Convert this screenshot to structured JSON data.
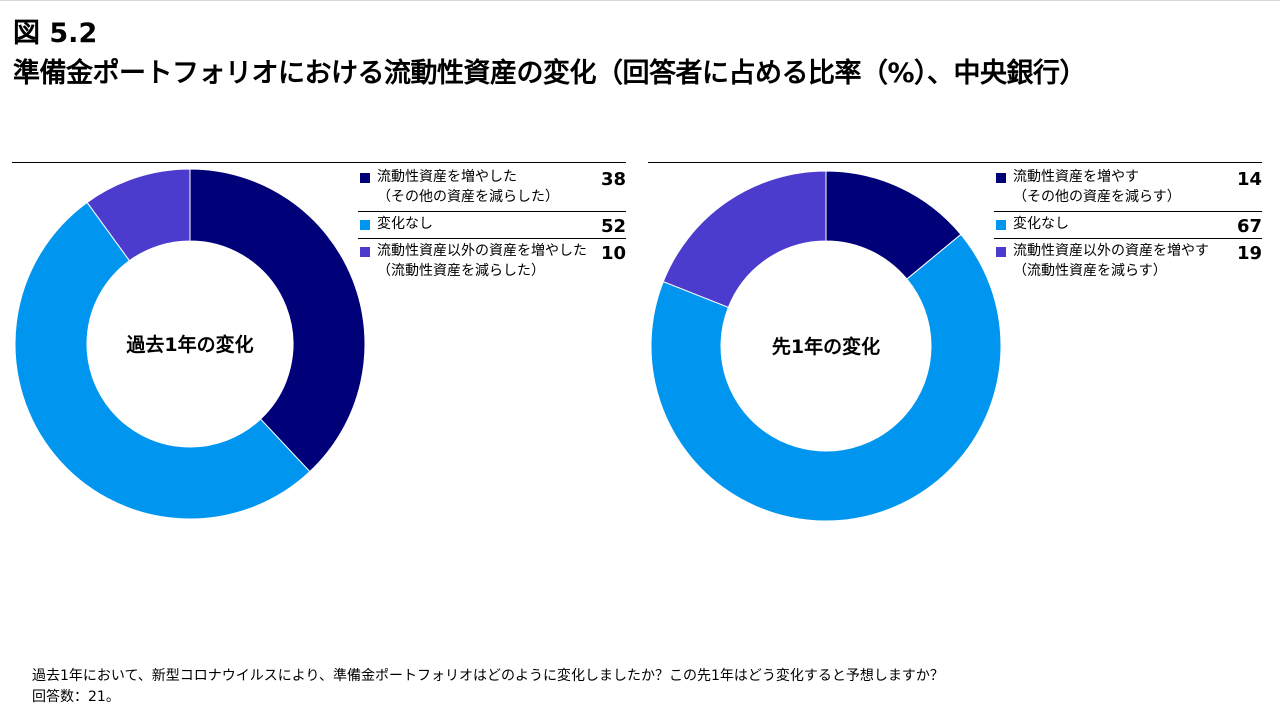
{
  "figure": {
    "number": "図 5.2",
    "title": "準備金ポートフォリオにおける流動性資産の変化（回答者に占める比率（%）、中央銀行）"
  },
  "chart_data": [
    {
      "type": "pie",
      "donut": true,
      "center_label": "過去1年の変化",
      "categories": [
        "流動性資産を増やした（その他の資産を減らした）",
        "変化なし",
        "流動性資産以外の資産を増やした（流動性資産を減らした）"
      ],
      "values": [
        38,
        52,
        10
      ],
      "colors": [
        "#000078",
        "#0096f0",
        "#4b3ccd"
      ],
      "legend": [
        {
          "line1": "流動性資産を増やした",
          "line2": "（その他の資産を減らした）",
          "value": "38",
          "color": "#000078"
        },
        {
          "line1": "変化なし",
          "line2": "",
          "value": "52",
          "color": "#0096f0"
        },
        {
          "line1": "流動性資産以外の資産を増やした",
          "line2": "（流動性資産を減らした）",
          "value": "10",
          "color": "#4b3ccd"
        }
      ]
    },
    {
      "type": "pie",
      "donut": true,
      "center_label": "先1年の変化",
      "categories": [
        "流動性資産を増やす（その他の資産を減らす）",
        "変化なし",
        "流動性資産以外の資産を増やす（流動性資産を減らす）"
      ],
      "values": [
        14,
        67,
        19
      ],
      "colors": [
        "#000078",
        "#0096f0",
        "#4b3ccd"
      ],
      "legend": [
        {
          "line1": "流動性資産を増やす",
          "line2": "（その他の資産を減らす）",
          "value": "14",
          "color": "#000078"
        },
        {
          "line1": "変化なし",
          "line2": "",
          "value": "67",
          "color": "#0096f0"
        },
        {
          "line1": "流動性資産以外の資産を増やす",
          "line2": "（流動性資産を減らす）",
          "value": "19",
          "color": "#4b3ccd"
        }
      ]
    }
  ],
  "footnote": {
    "line1": "過去1年において、新型コロナウイルスにより、準備金ポートフォリオはどのように変化しましたか？この先1年はどう変化すると予想しますか？",
    "line2": "回答数：21。"
  }
}
